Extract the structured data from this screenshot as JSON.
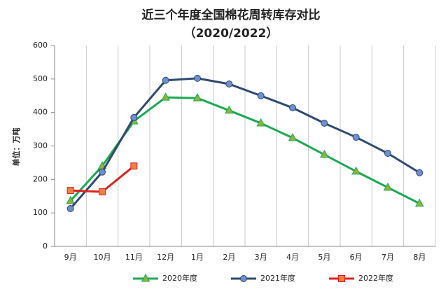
{
  "chart_data": {
    "type": "line",
    "title": "近三个年度全国棉花周转库存对比",
    "subtitle": "（2020/2022）",
    "y_label": "单位：万吨",
    "categories": [
      "9月",
      "10月",
      "11月",
      "12月",
      "1月",
      "2月",
      "3月",
      "4月",
      "5月",
      "6月",
      "7月",
      "8月"
    ],
    "series": [
      {
        "name": "2020年度",
        "color": "#1aaa55",
        "marker": "triangle",
        "marker_color": "#8db43a",
        "values": [
          136,
          240,
          374,
          445,
          443,
          406,
          368,
          324,
          274,
          224,
          176,
          128
        ]
      },
      {
        "name": "2021年度",
        "color": "#2f4a6e",
        "marker": "circle",
        "marker_color": "#6f8fd0",
        "values": [
          113,
          222,
          385,
          496,
          502,
          485,
          450,
          414,
          368,
          326,
          278,
          220
        ]
      },
      {
        "name": "2022年度",
        "color": "#e02020",
        "marker": "square",
        "marker_color": "#f08040",
        "values": [
          167,
          163,
          240,
          null,
          null,
          null,
          null,
          null,
          null,
          null,
          null,
          null
        ]
      }
    ],
    "ylim": [
      0,
      600
    ],
    "yticks": [
      0,
      100,
      200,
      300,
      400,
      500,
      600
    ],
    "grid": "x",
    "legend": "bottom"
  }
}
